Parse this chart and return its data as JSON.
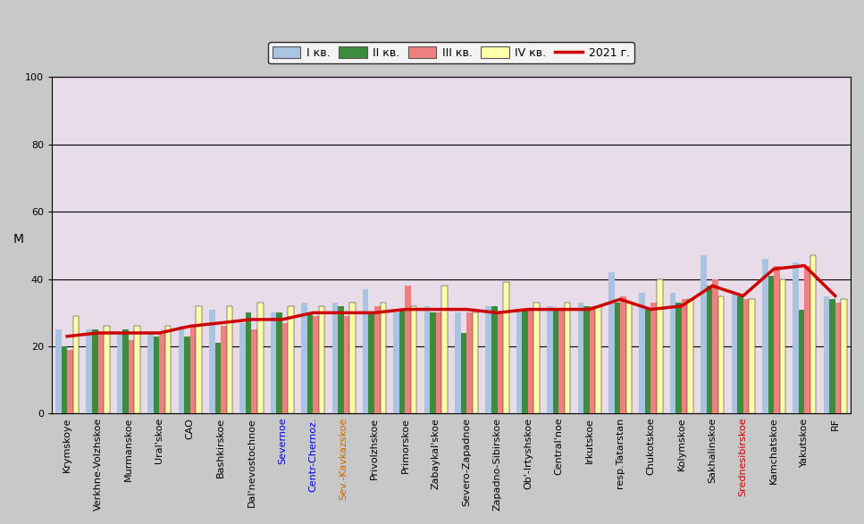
{
  "categories": [
    "Krymskoye",
    "Verkhne-Volzhskoe",
    "Murmanskoe",
    "Ural'skoe",
    "CAO",
    "Bashkirskoe",
    "Dal'nevostochnoe",
    "Severnoe",
    "Centr-Chernoz.",
    "Sev.-Kavkazskoe",
    "Privolzhskoe",
    "Primorskoe",
    "Zabaykal'skoe",
    "Severo-Zapadnoe",
    "Zapadno-Sibirskoe",
    "Ob'-Irtyshskoe",
    "Central'noe",
    "Irkutskoe",
    "resp.Tatarstan",
    "Chukotskoe",
    "Kolymskoe",
    "Sakhalinskoe",
    "Srednesibirskoe",
    "Kamchatskoe",
    "Yakutskoe",
    "RF"
  ],
  "q1": [
    25,
    25,
    24,
    24,
    26,
    31,
    27,
    30,
    33,
    33,
    37,
    30,
    32,
    30,
    32,
    31,
    32,
    33,
    42,
    36,
    36,
    47,
    36,
    46,
    45,
    35
  ],
  "q2": [
    20,
    25,
    25,
    23,
    23,
    21,
    30,
    30,
    30,
    32,
    30,
    31,
    30,
    24,
    32,
    31,
    31,
    32,
    33,
    31,
    33,
    38,
    35,
    41,
    31,
    34
  ],
  "q3": [
    19,
    24,
    22,
    24,
    26,
    26,
    25,
    27,
    29,
    29,
    32,
    38,
    30,
    30,
    30,
    31,
    31,
    32,
    35,
    33,
    34,
    40,
    34,
    44,
    44,
    33
  ],
  "q4": [
    29,
    26,
    26,
    26,
    32,
    32,
    33,
    32,
    32,
    33,
    33,
    32,
    38,
    30,
    39,
    33,
    33,
    32,
    33,
    40,
    34,
    35,
    34,
    40,
    47,
    34
  ],
  "line_2021": [
    23,
    24,
    24,
    24,
    26,
    27,
    28,
    28,
    30,
    30,
    30,
    31,
    31,
    31,
    30,
    31,
    31,
    31,
    34,
    31,
    32,
    38,
    35,
    43,
    44,
    35
  ],
  "bar_colors": [
    "#a8c4e0",
    "#3d8c3d",
    "#f08080",
    "#ffffaa"
  ],
  "line_color": "#cc0000",
  "legend_labels": [
    "І кв.",
    "ІІ кв.",
    "ІІІ кв.",
    "ІV кв.",
    "2021 г."
  ],
  "ylabel": "М",
  "ylim": [
    0,
    100
  ],
  "yticks": [
    0,
    20,
    40,
    60,
    80,
    100
  ],
  "fig_bg_color": "#c8c8c8",
  "plot_bg_color": "#e8dce8",
  "grid_color": "#000000",
  "tick_fontsize": 8,
  "bar_width": 0.19,
  "special_label_colors": {
    "Centr-Chernoz.": "#0000dd",
    "Sev.-Kavkazskoe": "#cc6600",
    "Severnoe": "#0000dd",
    "Srednesibirskoe": "#cc0000"
  }
}
